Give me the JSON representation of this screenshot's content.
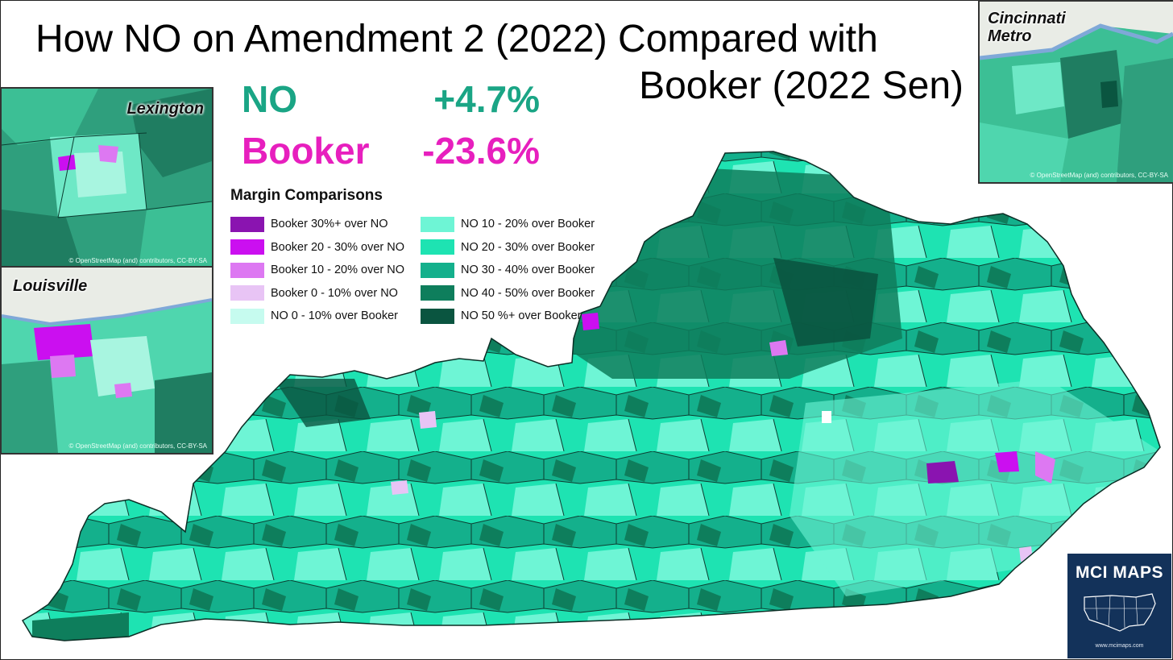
{
  "title_line1": "How NO on Amendment 2 (2022) Compared with",
  "title_line2": "Booker (2022 Sen)",
  "stats": {
    "no": {
      "label": "NO",
      "value": "+4.7%",
      "color": "#1aa585"
    },
    "booker": {
      "label": "Booker",
      "value": "-23.6%",
      "color": "#e71fbe"
    }
  },
  "legend": {
    "title": "Margin Comparisons",
    "left": [
      {
        "label": "Booker 30%+ over NO",
        "color": "#8a14b0"
      },
      {
        "label": "Booker 20 - 30% over NO",
        "color": "#cb0ff0"
      },
      {
        "label": "Booker 10 - 20% over NO",
        "color": "#dd78f2"
      },
      {
        "label": "Booker 0 - 10% over NO",
        "color": "#e8c4f5"
      },
      {
        "label": "NO 0 - 10% over Booker",
        "color": "#c6fbef"
      }
    ],
    "right": [
      {
        "label": "NO 10 - 20% over Booker",
        "color": "#6ef5d5"
      },
      {
        "label": "NO 20 - 30% over Booker",
        "color": "#1ee3b2"
      },
      {
        "label": "NO 30 - 40% over Booker",
        "color": "#14b08c"
      },
      {
        "label": "NO 40 - 50% over Booker",
        "color": "#0e7e5c"
      },
      {
        "label": "NO 50 %+ over Booker",
        "color": "#0a5540"
      }
    ]
  },
  "insets": {
    "lexington": {
      "label": "Lexington",
      "credit": "© OpenStreetMap (and) contributors, CC-BY-SA"
    },
    "louisville": {
      "label": "Louisville",
      "credit": "© OpenStreetMap (and) contributors, CC-BY-SA"
    },
    "cincinnati": {
      "label": "Cincinnati\nMetro",
      "credit": "© OpenStreetMap (and) contributors, CC-BY-SA"
    }
  },
  "logo": {
    "name": "MCI MAPS",
    "url": "www.mcimaps.com"
  }
}
